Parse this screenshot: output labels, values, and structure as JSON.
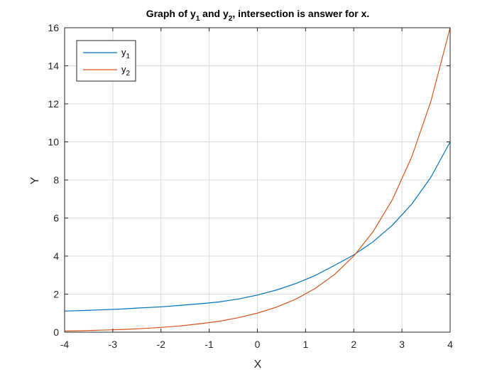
{
  "chart_data": {
    "type": "line",
    "title_parts": {
      "t1": "Graph of y",
      "s1": "1",
      "t2": " and y",
      "s2": "2",
      "t3": ", intersection is answer for x."
    },
    "xlabel": "X",
    "ylabel": "Y",
    "xlim": [
      -4,
      4
    ],
    "ylim": [
      0,
      16
    ],
    "xticks": [
      "-4",
      "-3",
      "-2",
      "-1",
      "0",
      "1",
      "2",
      "3",
      "4"
    ],
    "yticks": [
      "0",
      "2",
      "4",
      "6",
      "8",
      "10",
      "12",
      "14",
      "16"
    ],
    "grid": true,
    "legend_position": "top-left",
    "series": [
      {
        "name": "y1",
        "legend_base": "y",
        "legend_sub": "1",
        "color": "#0072BD",
        "x": [
          -4,
          -3.6,
          -3.2,
          -2.8,
          -2.4,
          -2.0,
          -1.6,
          -1.2,
          -0.8,
          -0.4,
          0.0,
          0.4,
          0.8,
          1.2,
          1.6,
          2.0,
          2.4,
          2.8,
          3.2,
          3.6,
          4.0
        ],
        "y": [
          1.11,
          1.14,
          1.18,
          1.22,
          1.28,
          1.33,
          1.41,
          1.49,
          1.59,
          1.74,
          1.95,
          2.22,
          2.56,
          2.98,
          3.51,
          4.06,
          4.75,
          5.62,
          6.72,
          8.14,
          10.0
        ]
      },
      {
        "name": "y2",
        "legend_base": "y",
        "legend_sub": "2",
        "color": "#D95319",
        "x": [
          -4,
          -3.6,
          -3.2,
          -2.8,
          -2.4,
          -2.0,
          -1.6,
          -1.2,
          -0.8,
          -0.4,
          0.0,
          0.4,
          0.8,
          1.2,
          1.6,
          2.0,
          2.4,
          2.8,
          3.2,
          3.6,
          4.0
        ],
        "y": [
          0.06,
          0.08,
          0.11,
          0.14,
          0.19,
          0.25,
          0.33,
          0.44,
          0.57,
          0.76,
          1.0,
          1.32,
          1.74,
          2.3,
          3.03,
          4.0,
          5.28,
          6.96,
          9.19,
          12.13,
          16.0
        ]
      }
    ]
  }
}
